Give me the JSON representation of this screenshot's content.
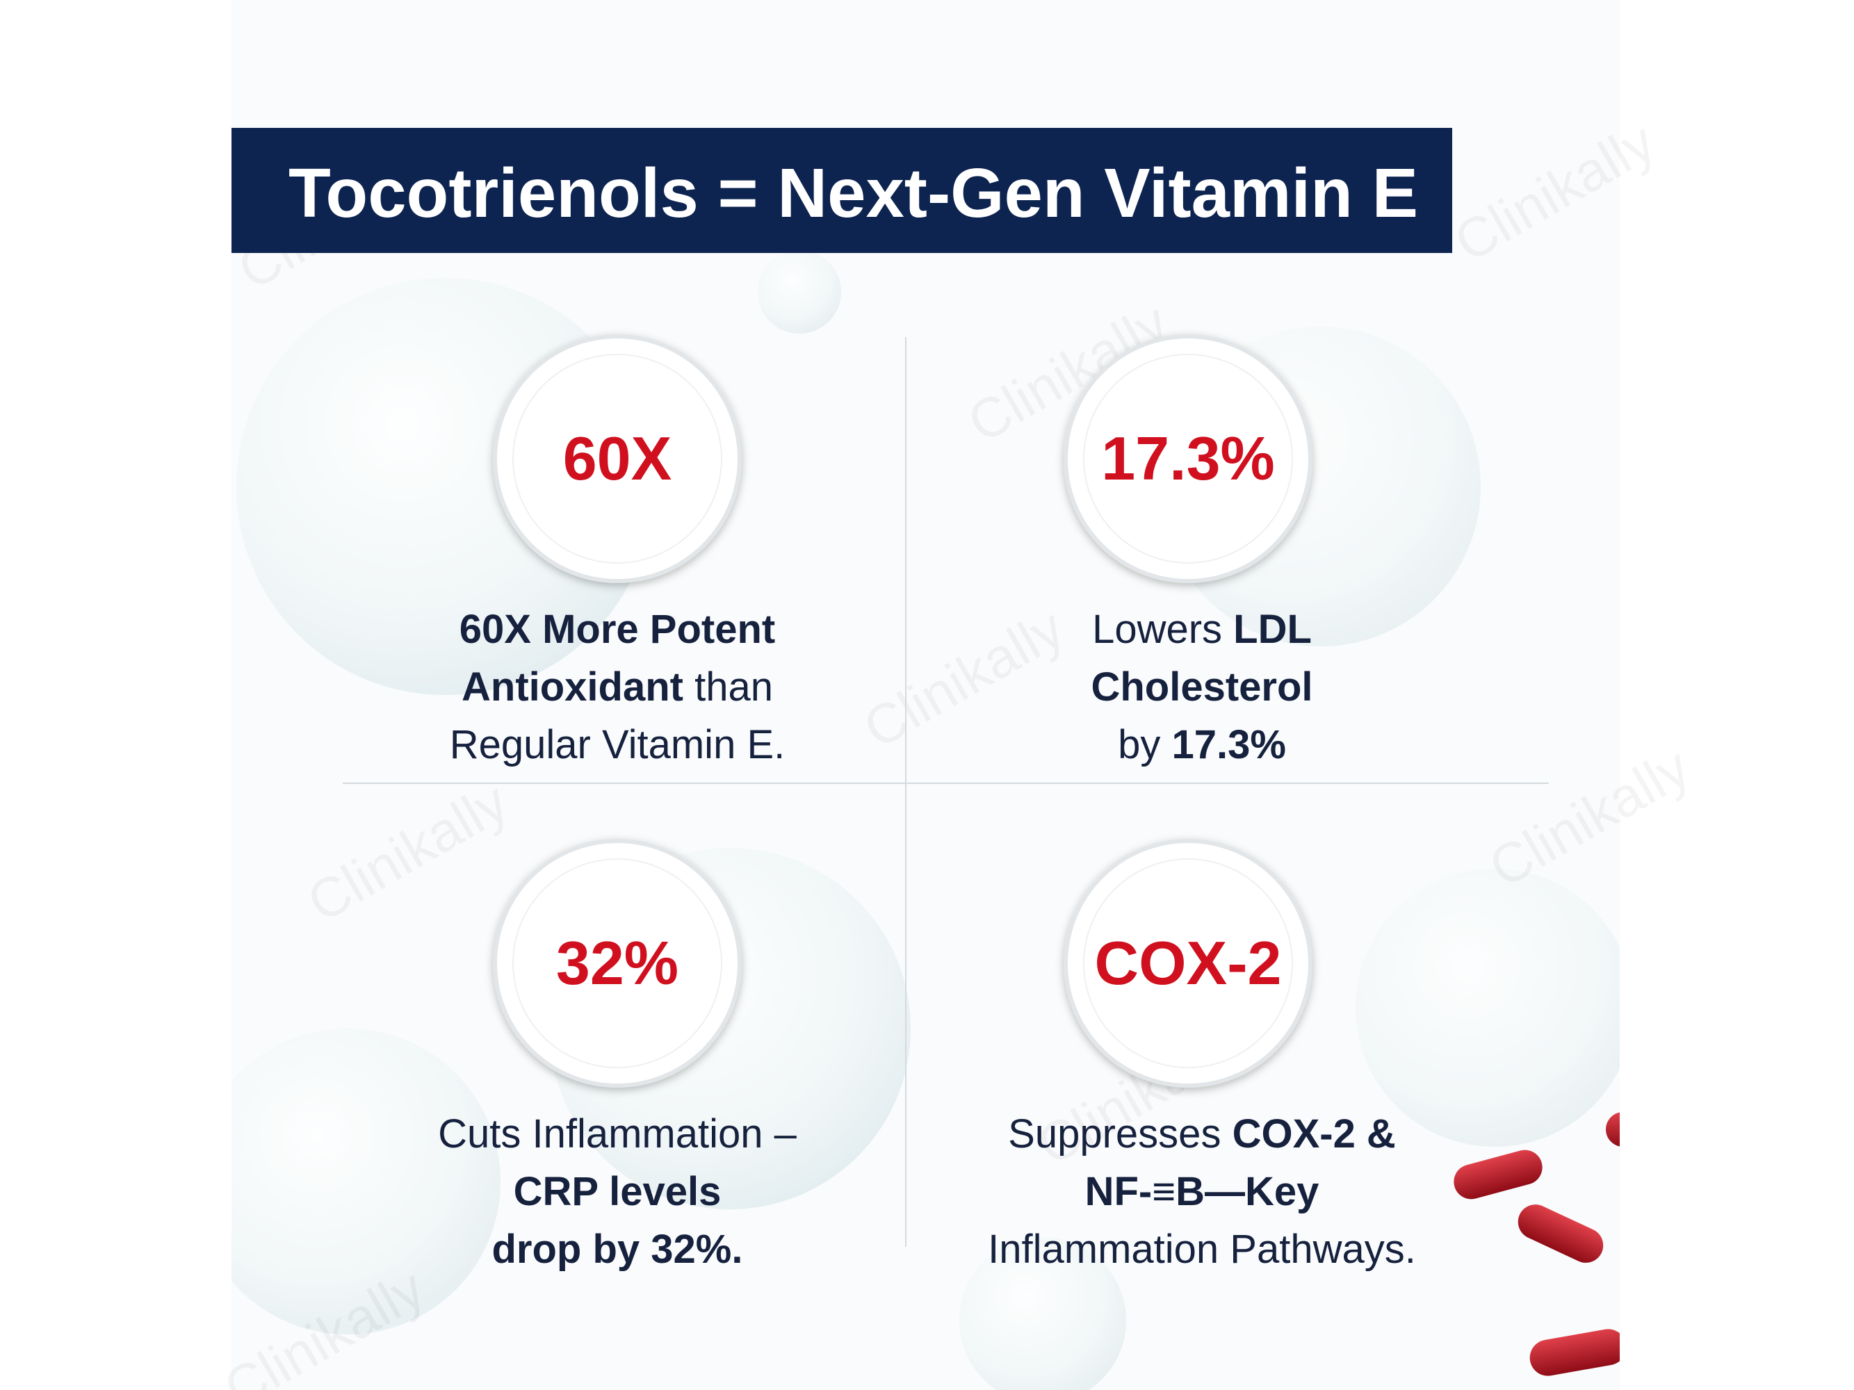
{
  "header": {
    "title": "Tocotrienols = Next-Gen Vitamin E"
  },
  "watermark": "Clinikally",
  "cards": [
    {
      "stat": "60X",
      "lines": [
        [
          {
            "text": "60X More Potent",
            "bold": true
          }
        ],
        [
          {
            "text": "Antioxidant",
            "bold": true
          },
          {
            "text": " than",
            "bold": false
          }
        ],
        [
          {
            "text": "Regular Vitamin E.",
            "bold": false
          }
        ]
      ]
    },
    {
      "stat": "17.3%",
      "lines": [
        [
          {
            "text": "Lowers ",
            "bold": false
          },
          {
            "text": "LDL",
            "bold": true
          }
        ],
        [
          {
            "text": "Cholesterol",
            "bold": true
          }
        ],
        [
          {
            "text": "by ",
            "bold": false
          },
          {
            "text": "17.3%",
            "bold": true
          }
        ]
      ]
    },
    {
      "stat": "32%",
      "lines": [
        [
          {
            "text": "Cuts Inflammation –",
            "bold": false
          }
        ],
        [
          {
            "text": "CRP levels",
            "bold": true
          }
        ],
        [
          {
            "text": "drop by 32%.",
            "bold": true
          }
        ]
      ]
    },
    {
      "stat": "COX-2",
      "lines": [
        [
          {
            "text": "Suppresses ",
            "bold": false
          },
          {
            "text": "COX-2 &",
            "bold": true
          }
        ],
        [
          {
            "text": "NF-≡B—Key",
            "bold": true
          }
        ],
        [
          {
            "text": "Inflammation Pathways.",
            "bold": false
          }
        ]
      ]
    }
  ]
}
